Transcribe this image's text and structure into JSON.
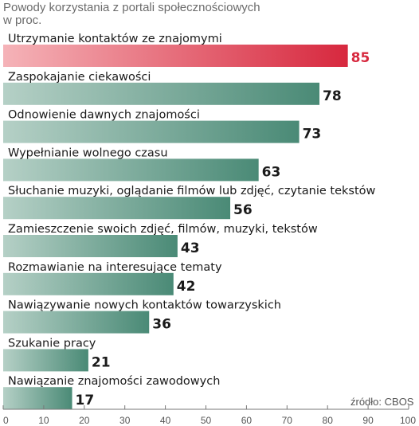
{
  "chart_data": {
    "type": "bar",
    "orientation": "horizontal",
    "title": "Powody korzystania z portali społecznościowych",
    "subtitle": "w proc.",
    "source": "źródło: CBOS",
    "categories": [
      "Utrzymanie kontaktów ze znajomymi",
      "Zaspokajanie ciekawości",
      "Odnowienie dawnych znajomości",
      "Wypełnianie wolnego czasu",
      "Słuchanie muzyki, oglądanie filmów lub zdjęć, czytanie tekstów",
      "Zamieszczenie swoich zdjęć, filmów, muzyki, tekstów",
      "Rozmawianie na interesujące tematy",
      "Nawiązywanie nowych kontaktów towarzyskich",
      "Szukanie pracy",
      "Nawiązanie znajomości zawodowych"
    ],
    "values": [
      85,
      78,
      73,
      63,
      56,
      43,
      42,
      36,
      21,
      17
    ],
    "value_labels": [
      "85",
      "78",
      "73",
      "63",
      "56",
      "43",
      "42",
      "36",
      "21",
      "17"
    ],
    "highlight_index": 0,
    "xlim": [
      0,
      100
    ],
    "xticks": [
      0,
      10,
      20,
      30,
      40,
      50,
      60,
      70,
      80,
      90,
      100
    ],
    "xtick_labels": [
      "0",
      "10",
      "20",
      "30",
      "40",
      "50",
      "60",
      "70",
      "80",
      "90",
      "100"
    ],
    "grid": false,
    "legend": false,
    "colors": {
      "bar": "#4a8a76",
      "bar_light": "#b5d0c6",
      "highlight": "#d7283e",
      "highlight_light": "#f5b3b8",
      "highlight_text": "#d7283e",
      "value_text": "#1a1a1a",
      "axis": "#777777"
    }
  }
}
